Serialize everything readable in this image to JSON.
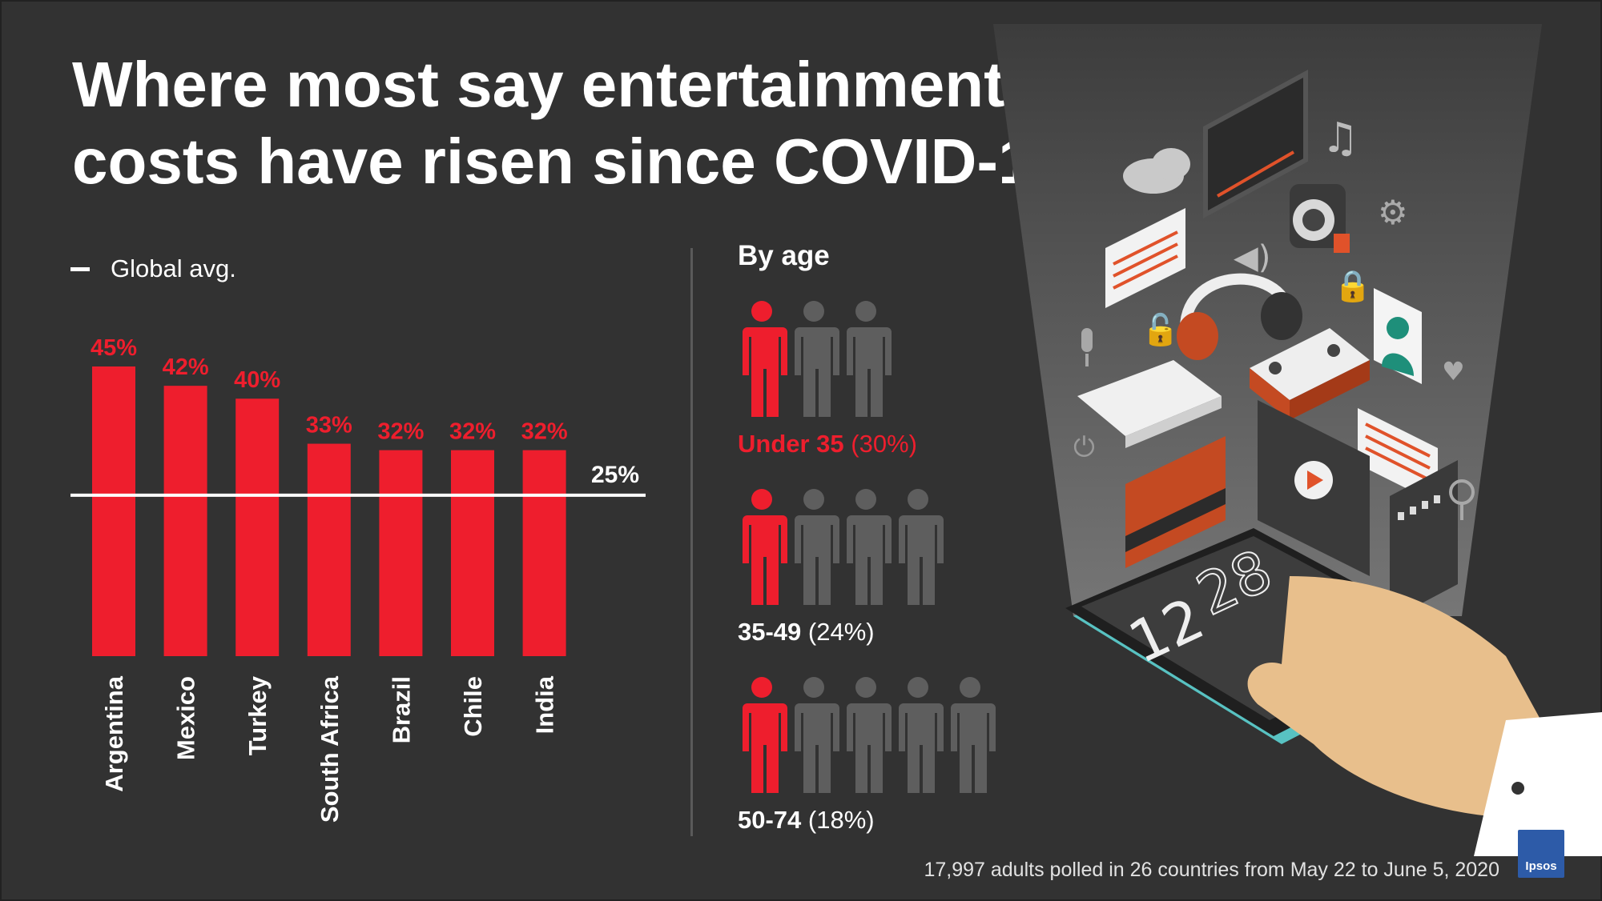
{
  "title": "Where most say entertainment costs have risen since COVID-19",
  "legend": {
    "label": "Global avg."
  },
  "chart_data": {
    "type": "bar",
    "title": "Where most say entertainment costs have risen since COVID-19",
    "categories": [
      "Argentina",
      "Mexico",
      "Turkey",
      "South Africa",
      "Brazil",
      "Chile",
      "India"
    ],
    "values": [
      45,
      42,
      40,
      33,
      32,
      32,
      32
    ],
    "value_labels": [
      "45%",
      "42%",
      "40%",
      "33%",
      "32%",
      "32%",
      "32%"
    ],
    "reference_line": {
      "label": "Global avg.",
      "value": 25,
      "value_label": "25%"
    },
    "ylim": [
      0,
      45
    ],
    "grid": false,
    "legend_position": "top-left",
    "bar_color": "#ee1e2d"
  },
  "by_age": {
    "title": "By age",
    "groups": [
      {
        "name": "Under 35",
        "pct": "(30%)",
        "icons_total": 3,
        "icons_highlighted": 1,
        "highlight": true
      },
      {
        "name": "35-49",
        "pct": "(24%)",
        "icons_total": 4,
        "icons_highlighted": 1,
        "highlight": false
      },
      {
        "name": "50-74",
        "pct": "(18%)",
        "icons_total": 5,
        "icons_highlighted": 1,
        "highlight": false
      }
    ]
  },
  "footnote": "17,997 adults polled in 26 countries from May 22 to June 5, 2020",
  "logo": {
    "text": "Ipsos"
  },
  "colors": {
    "background": "#323232",
    "accent": "#ee1e2d",
    "person_grey": "#5e5e5e",
    "divider": "#5a5a5a"
  },
  "clock": {
    "hours": "12",
    "minutes": "28"
  }
}
